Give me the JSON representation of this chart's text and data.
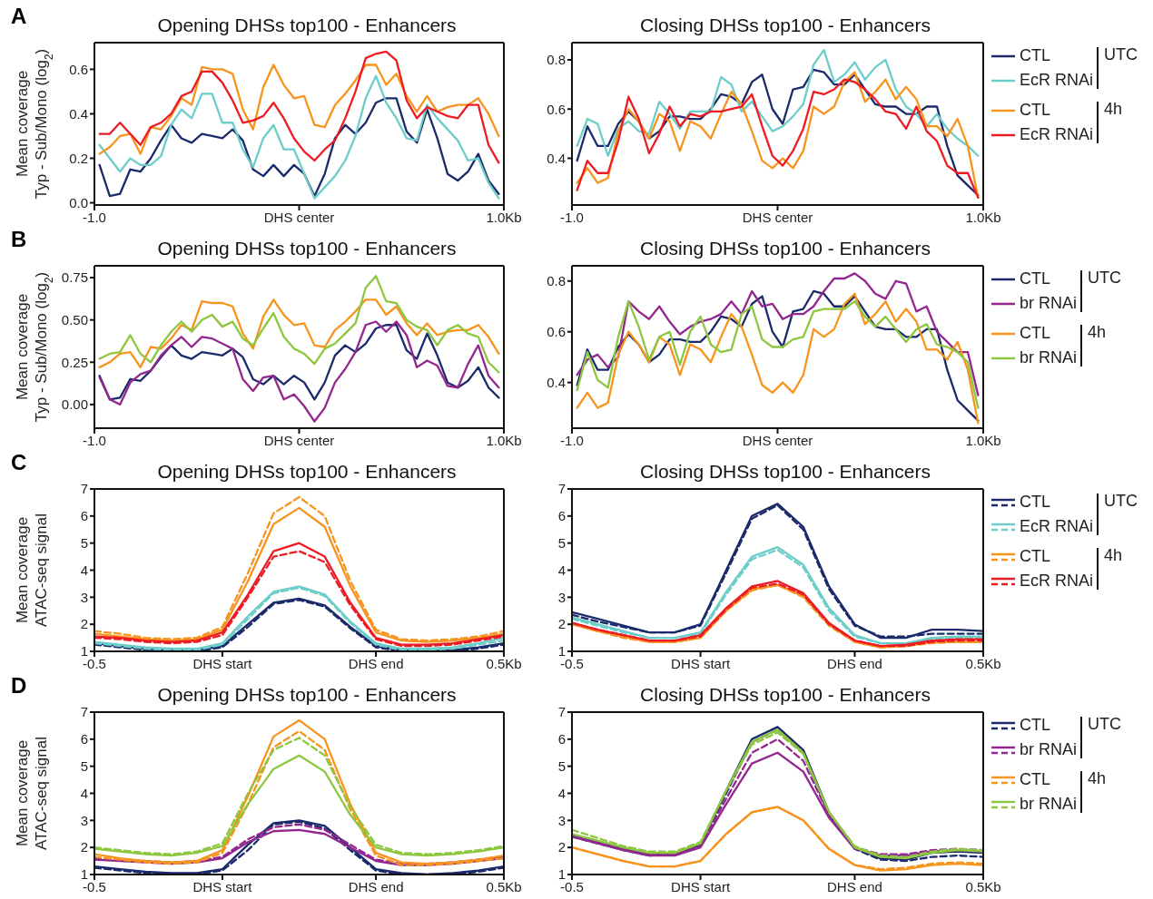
{
  "chart_data": [
    {
      "type": "line",
      "title": "Opening DHSs top100 - Enhancers",
      "ylabel": "Mean coverage\nTyp - Sub/Mono (log$_{2}$)",
      "annotations": [
        "A"
      ],
      "x": [
        -0.975,
        -0.925,
        -0.875,
        -0.825,
        -0.775,
        -0.725,
        -0.675,
        -0.625,
        -0.575,
        -0.525,
        -0.475,
        -0.425,
        -0.375,
        -0.325,
        -0.275,
        -0.225,
        -0.175,
        -0.125,
        -0.075,
        -0.025,
        0.025,
        0.075,
        0.125,
        0.175,
        0.225,
        0.275,
        0.325,
        0.375,
        0.425,
        0.475,
        0.525,
        0.575,
        0.625,
        0.675,
        0.725,
        0.775,
        0.825,
        0.875,
        0.925,
        0.975
      ],
      "xlim": [
        -1,
        1
      ],
      "xticks": [
        {
          "value": -1,
          "label": "-1.0"
        },
        {
          "value": 0,
          "label": "DHS center"
        },
        {
          "value": 1,
          "label": "1.0Kb"
        }
      ],
      "ylim": [
        -0.01,
        0.72
      ],
      "yticks": [
        {
          "value": 0,
          "label": "0.0"
        },
        0.2,
        0.4,
        0.6
      ],
      "series": [
        {
          "color": "#1b2a6b",
          "values": [
            0.17,
            0.03,
            0.04,
            0.15,
            0.14,
            0.2,
            0.28,
            0.35,
            0.29,
            0.27,
            0.31,
            0.3,
            0.29,
            0.33,
            0.28,
            0.15,
            0.12,
            0.17,
            0.12,
            0.17,
            0.13,
            0.03,
            0.13,
            0.29,
            0.35,
            0.31,
            0.36,
            0.45,
            0.47,
            0.47,
            0.32,
            0.27,
            0.42,
            0.29,
            0.13,
            0.1,
            0.14,
            0.22,
            0.1,
            0.04
          ]
        },
        {
          "color": "#6ccdc9",
          "values": [
            0.26,
            0.2,
            0.14,
            0.2,
            0.17,
            0.17,
            0.21,
            0.35,
            0.42,
            0.38,
            0.49,
            0.49,
            0.36,
            0.36,
            0.24,
            0.16,
            0.29,
            0.35,
            0.24,
            0.24,
            0.13,
            0.02,
            0.07,
            0.12,
            0.19,
            0.3,
            0.47,
            0.57,
            0.45,
            0.38,
            0.29,
            0.28,
            0.44,
            0.38,
            0.33,
            0.28,
            0.19,
            0.2,
            0.09,
            0.02
          ]
        },
        {
          "color": "#f7941d",
          "values": [
            0.22,
            0.25,
            0.3,
            0.31,
            0.22,
            0.34,
            0.33,
            0.39,
            0.47,
            0.44,
            0.61,
            0.6,
            0.6,
            0.58,
            0.42,
            0.33,
            0.52,
            0.62,
            0.53,
            0.47,
            0.48,
            0.35,
            0.34,
            0.44,
            0.49,
            0.55,
            0.62,
            0.62,
            0.53,
            0.58,
            0.48,
            0.41,
            0.48,
            0.41,
            0.43,
            0.44,
            0.44,
            0.47,
            0.4,
            0.3
          ]
        },
        {
          "color": "#ed1c24",
          "values": [
            0.31,
            0.31,
            0.36,
            0.31,
            0.26,
            0.34,
            0.36,
            0.4,
            0.48,
            0.5,
            0.59,
            0.59,
            0.54,
            0.46,
            0.36,
            0.37,
            0.39,
            0.45,
            0.38,
            0.29,
            0.23,
            0.19,
            0.24,
            0.28,
            0.38,
            0.5,
            0.65,
            0.67,
            0.68,
            0.64,
            0.46,
            0.38,
            0.43,
            0.41,
            0.39,
            0.38,
            0.44,
            0.44,
            0.26,
            0.18
          ]
        }
      ]
    },
    {
      "type": "line",
      "title": "Closing DHSs top100 - Enhancers",
      "legend": "right",
      "annotations": [
        "UTC",
        "4h"
      ],
      "x": [
        -0.975,
        -0.925,
        -0.875,
        -0.825,
        -0.775,
        -0.725,
        -0.675,
        -0.625,
        -0.575,
        -0.525,
        -0.475,
        -0.425,
        -0.375,
        -0.325,
        -0.275,
        -0.225,
        -0.175,
        -0.125,
        -0.075,
        -0.025,
        0.025,
        0.075,
        0.125,
        0.175,
        0.225,
        0.275,
        0.325,
        0.375,
        0.425,
        0.475,
        0.525,
        0.575,
        0.625,
        0.675,
        0.725,
        0.775,
        0.825,
        0.875,
        0.925,
        0.975
      ],
      "xlim": [
        -1,
        1
      ],
      "xticks": [
        {
          "value": -1,
          "label": "-1.0"
        },
        {
          "value": 0,
          "label": "DHS center"
        },
        {
          "value": 1,
          "label": "1.0Kb"
        }
      ],
      "ylim": [
        0.21,
        0.87
      ],
      "yticks": [
        0.4,
        0.6,
        0.8
      ],
      "series": [
        {
          "name": "CTL",
          "color": "#1b2a6b",
          "values": [
            0.39,
            0.53,
            0.45,
            0.45,
            0.54,
            0.59,
            0.55,
            0.48,
            0.51,
            0.57,
            0.57,
            0.56,
            0.56,
            0.6,
            0.66,
            0.65,
            0.62,
            0.71,
            0.74,
            0.6,
            0.54,
            0.68,
            0.69,
            0.76,
            0.75,
            0.7,
            0.7,
            0.74,
            0.68,
            0.62,
            0.61,
            0.61,
            0.58,
            0.58,
            0.61,
            0.61,
            0.45,
            0.33,
            0.29,
            0.25
          ]
        },
        {
          "name": "EcR RNAi",
          "color": "#6ccdc9",
          "values": [
            0.45,
            0.56,
            0.54,
            0.41,
            0.52,
            0.55,
            0.51,
            0.5,
            0.63,
            0.58,
            0.52,
            0.59,
            0.59,
            0.59,
            0.73,
            0.7,
            0.59,
            0.63,
            0.57,
            0.51,
            0.53,
            0.57,
            0.62,
            0.78,
            0.84,
            0.71,
            0.74,
            0.79,
            0.72,
            0.77,
            0.8,
            0.68,
            0.61,
            0.58,
            0.53,
            0.58,
            0.52,
            0.48,
            0.45,
            0.41
          ]
        },
        {
          "name": "CTL",
          "color": "#f7941d",
          "values": [
            0.3,
            0.36,
            0.3,
            0.32,
            0.51,
            0.6,
            0.55,
            0.48,
            0.58,
            0.55,
            0.43,
            0.55,
            0.53,
            0.48,
            0.58,
            0.67,
            0.62,
            0.51,
            0.39,
            0.36,
            0.4,
            0.36,
            0.43,
            0.61,
            0.58,
            0.61,
            0.71,
            0.75,
            0.63,
            0.67,
            0.72,
            0.64,
            0.69,
            0.64,
            0.53,
            0.53,
            0.49,
            0.56,
            0.45,
            0.24
          ]
        },
        {
          "name": "EcR RNAi",
          "color": "#ed1c24",
          "values": [
            0.27,
            0.39,
            0.34,
            0.34,
            0.47,
            0.65,
            0.56,
            0.42,
            0.5,
            0.61,
            0.53,
            0.58,
            0.57,
            0.59,
            0.59,
            0.6,
            0.61,
            0.66,
            0.53,
            0.41,
            0.37,
            0.43,
            0.52,
            0.67,
            0.66,
            0.68,
            0.72,
            0.71,
            0.68,
            0.64,
            0.59,
            0.58,
            0.52,
            0.61,
            0.51,
            0.47,
            0.37,
            0.34,
            0.34,
            0.24
          ]
        }
      ]
    },
    {
      "type": "line",
      "title": "Opening DHSs top100 - Enhancers",
      "ylabel": "Mean coverage\nTyp - Sub/Mono (log$_{2}$)",
      "annotations": [
        "B"
      ],
      "x": [
        -0.975,
        -0.925,
        -0.875,
        -0.825,
        -0.775,
        -0.725,
        -0.675,
        -0.625,
        -0.575,
        -0.525,
        -0.475,
        -0.425,
        -0.375,
        -0.325,
        -0.275,
        -0.225,
        -0.175,
        -0.125,
        -0.075,
        -0.025,
        0.025,
        0.075,
        0.125,
        0.175,
        0.225,
        0.275,
        0.325,
        0.375,
        0.425,
        0.475,
        0.525,
        0.575,
        0.625,
        0.675,
        0.725,
        0.775,
        0.825,
        0.875,
        0.925,
        0.975
      ],
      "xlim": [
        -1,
        1
      ],
      "xticks": [
        {
          "value": -1,
          "label": "-1.0"
        },
        {
          "value": 0,
          "label": "DHS center"
        },
        {
          "value": 1,
          "label": "1.0Kb"
        }
      ],
      "ylim": [
        -0.14,
        0.82
      ],
      "yticks": [
        {
          "value": 0,
          "label": "0.00"
        },
        {
          "value": 0.25,
          "label": "0.25"
        },
        {
          "value": 0.5,
          "label": "0.50"
        },
        {
          "value": 0.75,
          "label": "0.75"
        }
      ],
      "series": [
        {
          "color": "#1b2a6b",
          "values": [
            0.17,
            0.03,
            0.04,
            0.15,
            0.14,
            0.2,
            0.28,
            0.35,
            0.29,
            0.27,
            0.31,
            0.3,
            0.29,
            0.33,
            0.28,
            0.15,
            0.12,
            0.17,
            0.12,
            0.17,
            0.13,
            0.03,
            0.13,
            0.29,
            0.35,
            0.31,
            0.36,
            0.45,
            0.47,
            0.47,
            0.32,
            0.27,
            0.42,
            0.29,
            0.13,
            0.1,
            0.14,
            0.22,
            0.1,
            0.04
          ]
        },
        {
          "color": "#93278f",
          "values": [
            0.16,
            0.03,
            0.0,
            0.13,
            0.18,
            0.2,
            0.29,
            0.35,
            0.4,
            0.34,
            0.4,
            0.39,
            0.36,
            0.33,
            0.15,
            0.08,
            0.16,
            0.17,
            0.03,
            0.06,
            -0.01,
            -0.1,
            -0.02,
            0.13,
            0.21,
            0.31,
            0.47,
            0.49,
            0.43,
            0.49,
            0.41,
            0.22,
            0.26,
            0.23,
            0.11,
            0.1,
            0.24,
            0.35,
            0.17,
            0.1
          ]
        },
        {
          "color": "#f7941d",
          "values": [
            0.22,
            0.25,
            0.3,
            0.31,
            0.22,
            0.34,
            0.33,
            0.39,
            0.47,
            0.44,
            0.61,
            0.6,
            0.6,
            0.58,
            0.42,
            0.33,
            0.52,
            0.62,
            0.53,
            0.47,
            0.48,
            0.35,
            0.34,
            0.44,
            0.49,
            0.55,
            0.62,
            0.62,
            0.53,
            0.58,
            0.48,
            0.41,
            0.48,
            0.41,
            0.43,
            0.44,
            0.44,
            0.47,
            0.4,
            0.3
          ]
        },
        {
          "color": "#8dc63f",
          "values": [
            0.27,
            0.3,
            0.31,
            0.41,
            0.3,
            0.25,
            0.35,
            0.43,
            0.49,
            0.43,
            0.5,
            0.53,
            0.46,
            0.49,
            0.39,
            0.35,
            0.45,
            0.54,
            0.4,
            0.33,
            0.3,
            0.24,
            0.33,
            0.36,
            0.42,
            0.48,
            0.69,
            0.76,
            0.61,
            0.6,
            0.5,
            0.46,
            0.44,
            0.35,
            0.44,
            0.47,
            0.42,
            0.4,
            0.25,
            0.19
          ]
        }
      ]
    },
    {
      "type": "line",
      "title": "Closing DHSs top100 - Enhancers",
      "legend": "right",
      "annotations": [
        "UTC",
        "4h"
      ],
      "x": [
        -0.975,
        -0.925,
        -0.875,
        -0.825,
        -0.775,
        -0.725,
        -0.675,
        -0.625,
        -0.575,
        -0.525,
        -0.475,
        -0.425,
        -0.375,
        -0.325,
        -0.275,
        -0.225,
        -0.175,
        -0.125,
        -0.075,
        -0.025,
        0.025,
        0.075,
        0.125,
        0.175,
        0.225,
        0.275,
        0.325,
        0.375,
        0.425,
        0.475,
        0.525,
        0.575,
        0.625,
        0.675,
        0.725,
        0.775,
        0.825,
        0.875,
        0.925,
        0.975
      ],
      "xlim": [
        -1,
        1
      ],
      "xticks": [
        {
          "value": -1,
          "label": "-1.0"
        },
        {
          "value": 0,
          "label": "DHS center"
        },
        {
          "value": 1,
          "label": "1.0Kb"
        }
      ],
      "ylim": [
        0.22,
        0.86
      ],
      "yticks": [
        0.4,
        0.6,
        0.8
      ],
      "series": [
        {
          "name": "CTL",
          "color": "#1b2a6b",
          "values": [
            0.39,
            0.53,
            0.45,
            0.45,
            0.54,
            0.59,
            0.55,
            0.48,
            0.51,
            0.57,
            0.57,
            0.56,
            0.56,
            0.6,
            0.66,
            0.65,
            0.62,
            0.71,
            0.74,
            0.6,
            0.54,
            0.68,
            0.69,
            0.76,
            0.75,
            0.7,
            0.7,
            0.74,
            0.68,
            0.62,
            0.61,
            0.61,
            0.58,
            0.58,
            0.61,
            0.61,
            0.45,
            0.33,
            0.29,
            0.25
          ]
        },
        {
          "name": "br RNAi",
          "color": "#93278f",
          "values": [
            0.43,
            0.49,
            0.51,
            0.46,
            0.5,
            0.72,
            0.68,
            0.65,
            0.7,
            0.64,
            0.59,
            0.62,
            0.64,
            0.65,
            0.67,
            0.72,
            0.67,
            0.76,
            0.7,
            0.71,
            0.65,
            0.67,
            0.67,
            0.7,
            0.76,
            0.81,
            0.81,
            0.83,
            0.8,
            0.75,
            0.73,
            0.8,
            0.79,
            0.68,
            0.7,
            0.6,
            0.56,
            0.52,
            0.52,
            0.35
          ]
        },
        {
          "name": "CTL",
          "color": "#f7941d",
          "values": [
            0.3,
            0.36,
            0.3,
            0.32,
            0.51,
            0.6,
            0.55,
            0.48,
            0.58,
            0.55,
            0.43,
            0.55,
            0.53,
            0.48,
            0.58,
            0.67,
            0.62,
            0.51,
            0.39,
            0.36,
            0.4,
            0.36,
            0.43,
            0.61,
            0.58,
            0.61,
            0.71,
            0.75,
            0.63,
            0.67,
            0.72,
            0.64,
            0.69,
            0.64,
            0.53,
            0.53,
            0.49,
            0.56,
            0.45,
            0.24
          ]
        },
        {
          "name": "br RNAi",
          "color": "#8dc63f",
          "values": [
            0.37,
            0.52,
            0.41,
            0.38,
            0.58,
            0.72,
            0.62,
            0.49,
            0.58,
            0.6,
            0.47,
            0.6,
            0.66,
            0.55,
            0.52,
            0.53,
            0.67,
            0.7,
            0.57,
            0.54,
            0.54,
            0.57,
            0.58,
            0.68,
            0.69,
            0.69,
            0.69,
            0.72,
            0.66,
            0.62,
            0.66,
            0.61,
            0.56,
            0.61,
            0.63,
            0.55,
            0.54,
            0.52,
            0.48,
            0.3
          ]
        }
      ]
    },
    {
      "type": "line",
      "title": "Opening DHSs top100 - Enhancers",
      "ylabel": "Mean coverage\nATAC-seq signal",
      "annotations": [
        "C"
      ],
      "categories": [
        "-0.5",
        null,
        null,
        null,
        null,
        "DHS start",
        null,
        null,
        null,
        null,
        null,
        "DHS end",
        null,
        null,
        null,
        null,
        "0.5Kb"
      ],
      "ylim": [
        1,
        7
      ],
      "yticks": [
        1,
        2,
        3,
        4,
        5,
        6,
        7
      ],
      "series": [
        {
          "color": "#1b2a6b",
          "values": [
            1.3,
            1.2,
            1.1,
            1.05,
            1.05,
            1.2,
            2.0,
            2.8,
            2.95,
            2.7,
            1.9,
            1.2,
            1.05,
            1.0,
            1.05,
            1.15,
            1.3
          ]
        },
        {
          "color": "#1b2a6b",
          "line_style": "dashed",
          "values": [
            1.25,
            1.15,
            1.05,
            1.0,
            1.0,
            1.15,
            1.9,
            2.75,
            2.9,
            2.65,
            1.85,
            1.15,
            1.0,
            1.0,
            1.0,
            1.1,
            1.25
          ]
        },
        {
          "color": "#6ccdc9",
          "values": [
            1.35,
            1.25,
            1.15,
            1.1,
            1.1,
            1.3,
            2.3,
            3.2,
            3.4,
            3.1,
            2.1,
            1.3,
            1.1,
            1.1,
            1.15,
            1.3,
            1.5
          ]
        },
        {
          "color": "#6ccdc9",
          "line_style": "dashed",
          "values": [
            1.3,
            1.2,
            1.1,
            1.05,
            1.05,
            1.25,
            2.2,
            3.15,
            3.35,
            3.05,
            2.05,
            1.25,
            1.05,
            1.05,
            1.1,
            1.25,
            1.4
          ]
        },
        {
          "color": "#f7941d",
          "values": [
            1.65,
            1.55,
            1.45,
            1.4,
            1.45,
            1.8,
            3.6,
            5.7,
            6.3,
            5.6,
            3.4,
            1.7,
            1.4,
            1.35,
            1.4,
            1.5,
            1.65
          ]
        },
        {
          "color": "#f7941d",
          "line_style": "dashed",
          "values": [
            1.75,
            1.65,
            1.5,
            1.45,
            1.5,
            1.9,
            3.9,
            6.1,
            6.7,
            6.0,
            3.6,
            1.8,
            1.45,
            1.4,
            1.45,
            1.55,
            1.75
          ]
        },
        {
          "color": "#ed1c24",
          "values": [
            1.55,
            1.5,
            1.4,
            1.35,
            1.4,
            1.7,
            3.1,
            4.7,
            5.0,
            4.5,
            2.8,
            1.5,
            1.25,
            1.25,
            1.3,
            1.45,
            1.6
          ]
        },
        {
          "color": "#ed1c24",
          "line_style": "dashed",
          "values": [
            1.5,
            1.45,
            1.35,
            1.3,
            1.35,
            1.6,
            3.0,
            4.5,
            4.7,
            4.3,
            2.7,
            1.45,
            1.2,
            1.2,
            1.25,
            1.4,
            1.55
          ]
        }
      ]
    },
    {
      "type": "line",
      "title": "Closing DHSs top100 - Enhancers",
      "legend": "right",
      "annotations": [
        "UTC",
        "4h"
      ],
      "categories": [
        "-0.5",
        null,
        null,
        null,
        null,
        "DHS start",
        null,
        null,
        null,
        null,
        null,
        "DHS end",
        null,
        null,
        null,
        null,
        "0.5Kb"
      ],
      "ylim": [
        1,
        7
      ],
      "yticks": [
        1,
        2,
        3,
        4,
        5,
        6,
        7
      ],
      "series": [
        {
          "name": "CTL",
          "color": "#1b2a6b",
          "values": [
            2.45,
            2.2,
            1.95,
            1.7,
            1.7,
            2.0,
            4.0,
            6.0,
            6.45,
            5.6,
            3.4,
            2.0,
            1.5,
            1.5,
            1.8,
            1.8,
            1.75
          ]
        },
        {
          "color": "#1b2a6b",
          "line_style": "dashed",
          "values": [
            2.35,
            2.1,
            1.9,
            1.7,
            1.7,
            1.95,
            3.9,
            5.9,
            6.4,
            5.5,
            3.3,
            1.95,
            1.55,
            1.55,
            1.65,
            1.65,
            1.65
          ]
        },
        {
          "name": "EcR RNAi",
          "color": "#6ccdc9",
          "values": [
            2.25,
            2.0,
            1.75,
            1.5,
            1.5,
            1.7,
            3.2,
            4.5,
            4.85,
            4.2,
            2.6,
            1.6,
            1.3,
            1.3,
            1.5,
            1.55,
            1.55
          ]
        },
        {
          "color": "#6ccdc9",
          "line_style": "dashed",
          "values": [
            2.2,
            1.95,
            1.7,
            1.5,
            1.5,
            1.65,
            3.1,
            4.4,
            4.75,
            4.1,
            2.5,
            1.55,
            1.3,
            1.3,
            1.45,
            1.5,
            1.5
          ]
        },
        {
          "name": "CTL",
          "color": "#f7941d",
          "values": [
            2.0,
            1.75,
            1.55,
            1.35,
            1.35,
            1.5,
            2.5,
            3.3,
            3.45,
            3.05,
            2.0,
            1.35,
            1.15,
            1.2,
            1.35,
            1.35,
            1.35
          ]
        },
        {
          "color": "#f7941d",
          "line_style": "dashed",
          "values": [
            2.0,
            1.75,
            1.5,
            1.35,
            1.35,
            1.5,
            2.5,
            3.25,
            3.45,
            3.0,
            1.95,
            1.35,
            1.15,
            1.2,
            1.3,
            1.35,
            1.35
          ]
        },
        {
          "name": "EcR RNAi",
          "color": "#ed1c24",
          "values": [
            2.05,
            1.8,
            1.6,
            1.4,
            1.4,
            1.6,
            2.6,
            3.4,
            3.6,
            3.15,
            2.05,
            1.4,
            1.2,
            1.25,
            1.4,
            1.45,
            1.45
          ]
        },
        {
          "color": "#ed1c24",
          "line_style": "dashed",
          "values": [
            2.05,
            1.8,
            1.6,
            1.4,
            1.4,
            1.55,
            2.55,
            3.35,
            3.5,
            3.1,
            2.0,
            1.4,
            1.2,
            1.2,
            1.35,
            1.4,
            1.4
          ]
        }
      ]
    },
    {
      "type": "line",
      "title": "Opening DHSs top100 - Enhancers",
      "ylabel": "Mean coverage\nATAC-seq signal",
      "annotations": [
        "D"
      ],
      "categories": [
        "-0.5",
        null,
        null,
        null,
        null,
        "DHS start",
        null,
        null,
        null,
        null,
        null,
        "DHS end",
        null,
        null,
        null,
        null,
        "0.5Kb"
      ],
      "ylim": [
        1,
        7
      ],
      "yticks": [
        1,
        2,
        3,
        4,
        5,
        6,
        7
      ],
      "series": [
        {
          "color": "#1b2a6b",
          "values": [
            1.3,
            1.2,
            1.1,
            1.05,
            1.05,
            1.2,
            2.1,
            2.9,
            3.0,
            2.8,
            2.0,
            1.2,
            1.05,
            1.0,
            1.05,
            1.15,
            1.3
          ]
        },
        {
          "color": "#1b2a6b",
          "line_style": "dashed",
          "values": [
            1.25,
            1.15,
            1.05,
            1.0,
            1.0,
            1.15,
            1.9,
            2.85,
            2.95,
            2.7,
            1.9,
            1.15,
            1.0,
            1.0,
            1.0,
            1.1,
            1.25
          ]
        },
        {
          "color": "#93278f",
          "values": [
            1.55,
            1.5,
            1.45,
            1.4,
            1.45,
            1.6,
            2.2,
            2.6,
            2.65,
            2.5,
            2.0,
            1.5,
            1.35,
            1.35,
            1.4,
            1.5,
            1.6
          ]
        },
        {
          "color": "#93278f",
          "line_style": "dashed",
          "values": [
            1.6,
            1.55,
            1.5,
            1.45,
            1.5,
            1.65,
            2.3,
            2.75,
            2.85,
            2.65,
            2.1,
            1.55,
            1.4,
            1.4,
            1.45,
            1.55,
            1.65
          ]
        },
        {
          "color": "#f7941d",
          "values": [
            1.75,
            1.6,
            1.5,
            1.45,
            1.5,
            1.9,
            3.9,
            6.1,
            6.7,
            6.0,
            3.6,
            1.8,
            1.45,
            1.4,
            1.45,
            1.55,
            1.7
          ]
        },
        {
          "color": "#f7941d",
          "line_style": "dashed",
          "values": [
            1.65,
            1.55,
            1.45,
            1.4,
            1.45,
            1.8,
            3.6,
            5.7,
            6.3,
            5.6,
            3.4,
            1.7,
            1.35,
            1.35,
            1.4,
            1.5,
            1.6
          ]
        },
        {
          "color": "#8dc63f",
          "values": [
            1.95,
            1.85,
            1.75,
            1.7,
            1.8,
            2.05,
            3.6,
            4.9,
            5.4,
            4.8,
            3.2,
            2.0,
            1.75,
            1.7,
            1.75,
            1.85,
            2.0
          ]
        },
        {
          "color": "#8dc63f",
          "line_style": "dashed",
          "values": [
            2.0,
            1.9,
            1.8,
            1.75,
            1.85,
            2.15,
            4.0,
            5.6,
            6.05,
            5.4,
            3.5,
            2.1,
            1.8,
            1.75,
            1.8,
            1.9,
            2.05
          ]
        }
      ]
    },
    {
      "type": "line",
      "title": "Closing DHSs top100 - Enhancers",
      "legend": "right",
      "annotations": [
        "UTC",
        "4h"
      ],
      "categories": [
        "-0.5",
        null,
        null,
        null,
        null,
        "DHS start",
        null,
        null,
        null,
        null,
        null,
        "DHS end",
        null,
        null,
        null,
        null,
        "0.5Kb"
      ],
      "ylim": [
        1,
        7
      ],
      "yticks": [
        1,
        2,
        3,
        4,
        5,
        6,
        7
      ],
      "series": [
        {
          "name": "CTL",
          "color": "#1b2a6b",
          "values": [
            2.45,
            2.2,
            1.95,
            1.75,
            1.75,
            2.1,
            4.1,
            6.0,
            6.45,
            5.6,
            3.3,
            2.0,
            1.6,
            1.55,
            1.8,
            1.85,
            1.8
          ]
        },
        {
          "color": "#1b2a6b",
          "line_style": "dashed",
          "values": [
            2.4,
            2.15,
            1.9,
            1.7,
            1.75,
            2.05,
            4.0,
            5.9,
            6.35,
            5.5,
            3.2,
            1.95,
            1.55,
            1.5,
            1.65,
            1.7,
            1.65
          ]
        },
        {
          "name": "br RNAi",
          "color": "#93278f",
          "values": [
            2.4,
            2.15,
            1.9,
            1.7,
            1.7,
            2.0,
            3.6,
            5.1,
            5.5,
            4.8,
            3.1,
            1.95,
            1.7,
            1.7,
            1.85,
            1.9,
            1.85
          ]
        },
        {
          "color": "#93278f",
          "line_style": "dashed",
          "values": [
            2.45,
            2.2,
            1.95,
            1.75,
            1.75,
            2.05,
            3.8,
            5.5,
            6.0,
            5.2,
            3.2,
            2.0,
            1.75,
            1.75,
            1.9,
            1.95,
            1.9
          ]
        },
        {
          "name": "CTL",
          "color": "#f7941d",
          "values": [
            2.0,
            1.75,
            1.5,
            1.3,
            1.3,
            1.5,
            2.5,
            3.3,
            3.5,
            3.0,
            1.95,
            1.35,
            1.15,
            1.2,
            1.35,
            1.4,
            1.35
          ]
        },
        {
          "color": "#f7941d",
          "line_style": "dashed",
          "values": [
            2.0,
            1.75,
            1.5,
            1.3,
            1.3,
            1.5,
            2.5,
            3.3,
            3.5,
            3.0,
            1.95,
            1.35,
            1.2,
            1.25,
            1.4,
            1.45,
            1.4
          ]
        },
        {
          "name": "br RNAi",
          "color": "#8dc63f",
          "values": [
            2.5,
            2.25,
            2.0,
            1.8,
            1.8,
            2.15,
            4.1,
            5.9,
            6.35,
            5.5,
            3.3,
            2.0,
            1.65,
            1.6,
            1.8,
            1.9,
            1.85
          ]
        },
        {
          "color": "#8dc63f",
          "line_style": "dashed",
          "values": [
            2.65,
            2.35,
            2.05,
            1.85,
            1.85,
            2.2,
            4.1,
            5.8,
            6.25,
            5.45,
            3.3,
            2.05,
            1.7,
            1.65,
            1.85,
            1.95,
            1.9
          ]
        }
      ]
    }
  ]
}
